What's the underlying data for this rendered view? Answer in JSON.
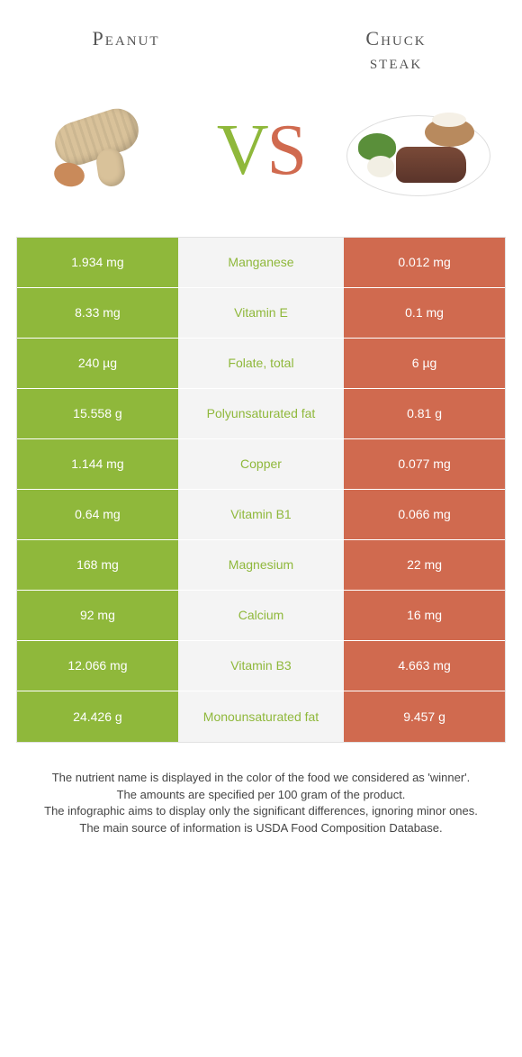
{
  "header": {
    "left_title": "Peanut",
    "right_title_line1": "Chuck",
    "right_title_line2": "steak",
    "vs_v": "V",
    "vs_s": "S"
  },
  "colors": {
    "left_bg": "#8fb83b",
    "right_bg": "#d06a4f",
    "mid_bg": "#f4f4f4",
    "mid_text_left_winner": "#8fb83b",
    "mid_text_right_winner": "#d06a4f"
  },
  "rows": [
    {
      "left": "1.934 mg",
      "name": "Manganese",
      "right": "0.012 mg",
      "winner": "left"
    },
    {
      "left": "8.33 mg",
      "name": "Vitamin E",
      "right": "0.1 mg",
      "winner": "left"
    },
    {
      "left": "240 µg",
      "name": "Folate, total",
      "right": "6 µg",
      "winner": "left"
    },
    {
      "left": "15.558 g",
      "name": "Polyunsaturated fat",
      "right": "0.81 g",
      "winner": "left"
    },
    {
      "left": "1.144 mg",
      "name": "Copper",
      "right": "0.077 mg",
      "winner": "left"
    },
    {
      "left": "0.64 mg",
      "name": "Vitamin B1",
      "right": "0.066 mg",
      "winner": "left"
    },
    {
      "left": "168 mg",
      "name": "Magnesium",
      "right": "22 mg",
      "winner": "left"
    },
    {
      "left": "92 mg",
      "name": "Calcium",
      "right": "16 mg",
      "winner": "left"
    },
    {
      "left": "12.066 mg",
      "name": "Vitamin B3",
      "right": "4.663 mg",
      "winner": "left"
    },
    {
      "left": "24.426 g",
      "name": "Monounsaturated fat",
      "right": "9.457 g",
      "winner": "left"
    }
  ],
  "footer": {
    "line1": "The nutrient name is displayed in the color of the food we considered as 'winner'.",
    "line2": "The amounts are specified per 100 gram of the product.",
    "line3": "The infographic aims to display only the significant differences, ignoring minor ones.",
    "line4": "The main source of information is USDA Food Composition Database."
  }
}
